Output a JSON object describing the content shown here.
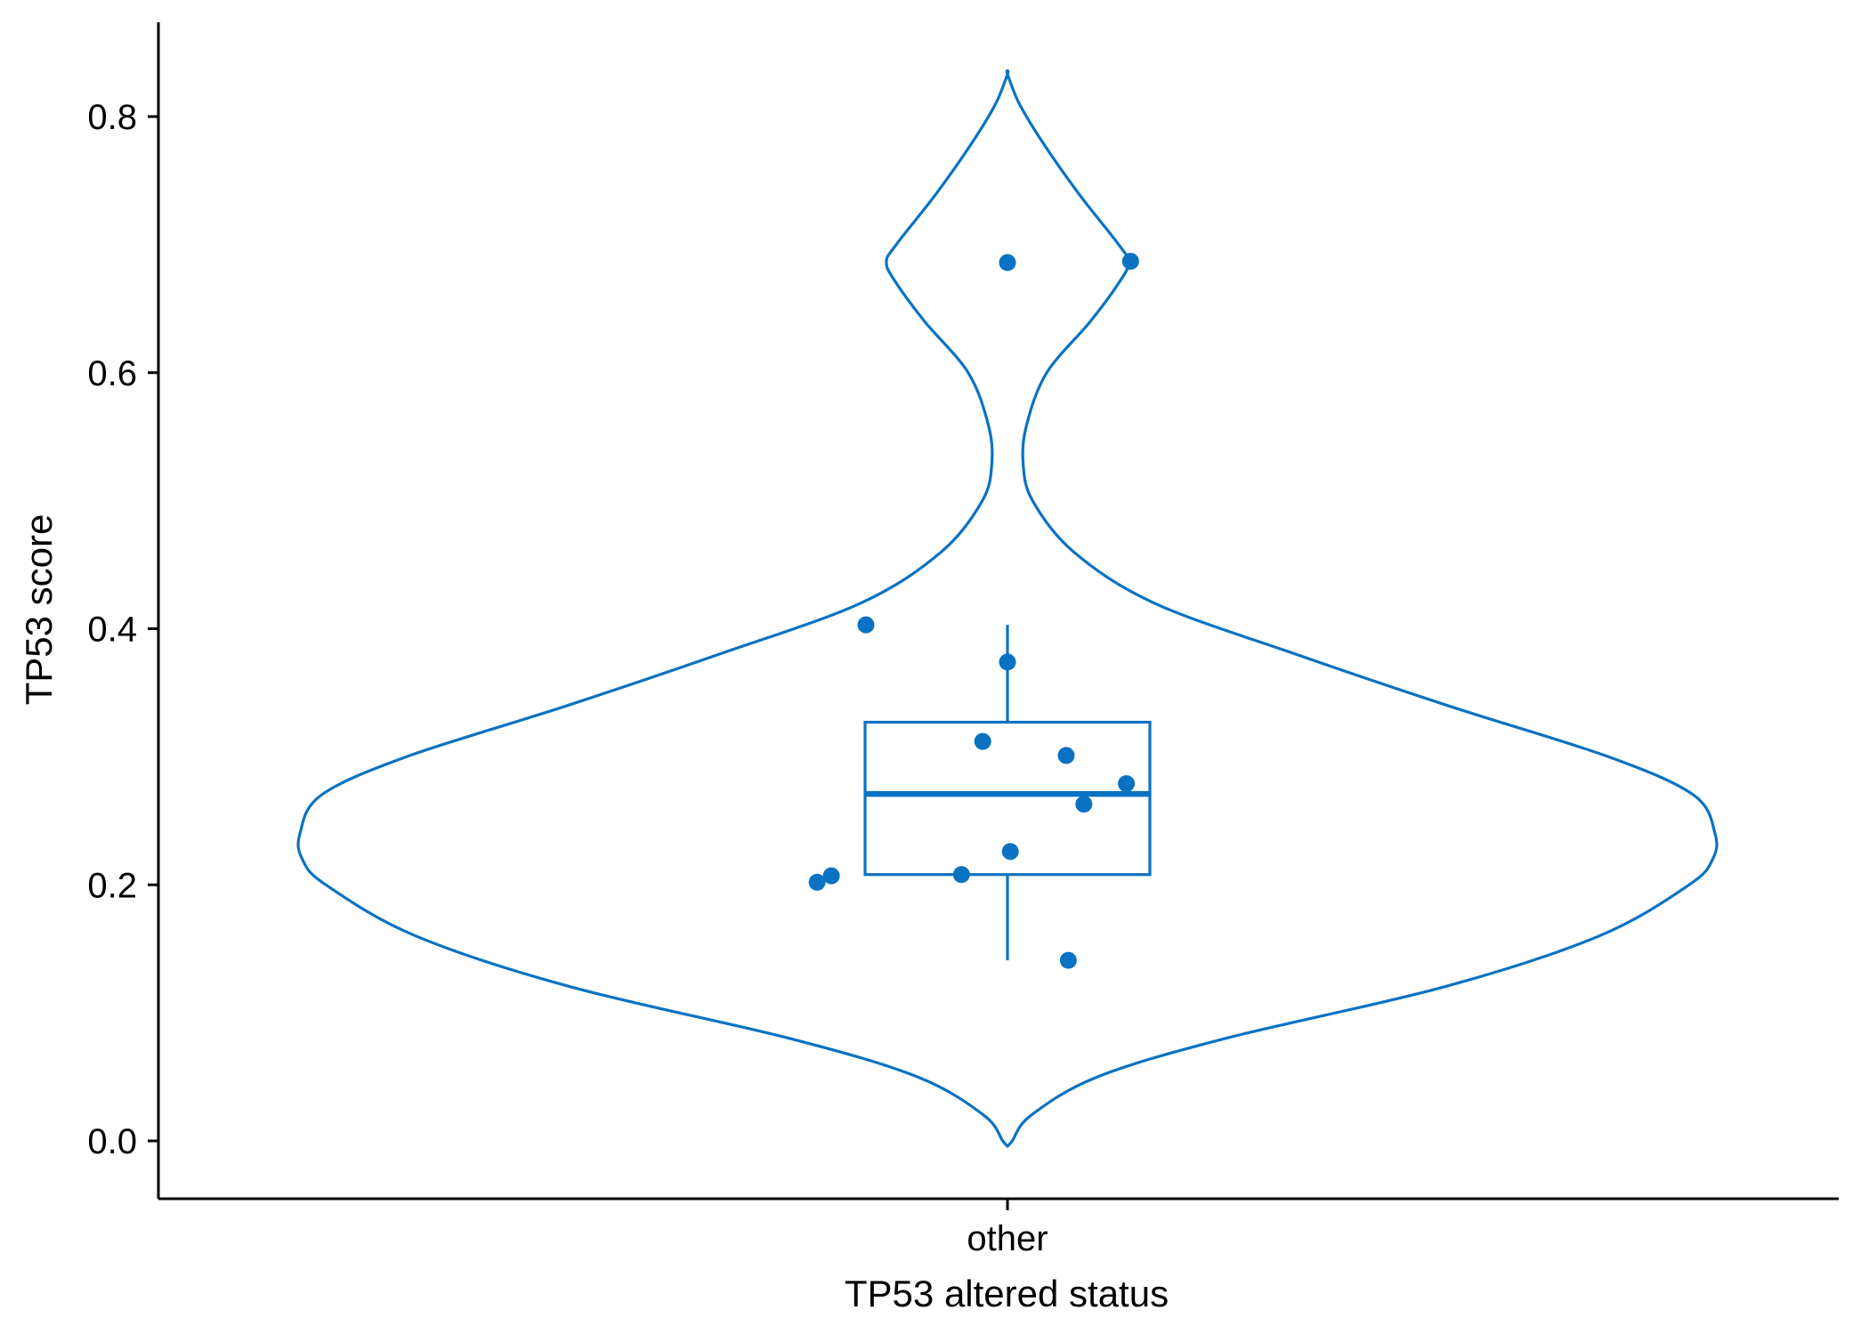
{
  "chart_data": {
    "type": "violin",
    "title": "",
    "xlabel": "TP53 altered status",
    "ylabel": "TP53 score",
    "categories": [
      "other"
    ],
    "ylim": [
      -0.075,
      0.875
    ],
    "yticks": [
      0.0,
      0.2,
      0.4,
      0.6,
      0.8
    ],
    "ytick_labels": [
      "0.0",
      "0.2",
      "0.4",
      "0.6",
      "0.8"
    ],
    "grid": false,
    "legend": "none",
    "color": "#0A72C2",
    "points": [
      {
        "x_jitter": 0.0,
        "y": 0.686
      },
      {
        "x_jitter": 0.174,
        "y": 0.687
      },
      {
        "x_jitter": -0.2,
        "y": 0.403
      },
      {
        "x_jitter": 0.0,
        "y": 0.374
      },
      {
        "x_jitter": -0.035,
        "y": 0.312
      },
      {
        "x_jitter": 0.083,
        "y": 0.301
      },
      {
        "x_jitter": 0.168,
        "y": 0.279
      },
      {
        "x_jitter": 0.108,
        "y": 0.263
      },
      {
        "x_jitter": 0.004,
        "y": 0.226
      },
      {
        "x_jitter": -0.065,
        "y": 0.208
      },
      {
        "x_jitter": -0.249,
        "y": 0.207
      },
      {
        "x_jitter": -0.269,
        "y": 0.202
      },
      {
        "x_jitter": 0.086,
        "y": 0.141
      }
    ],
    "box": {
      "min": 0.141,
      "q1": 0.208,
      "median": 0.271,
      "q3": 0.327,
      "max": 0.403
    },
    "violin": {
      "y": [
        -0.004,
        0.0,
        0.02,
        0.05,
        0.08,
        0.12,
        0.16,
        0.2,
        0.22,
        0.24,
        0.27,
        0.3,
        0.34,
        0.38,
        0.42,
        0.46,
        0.5,
        0.53,
        0.56,
        0.6,
        0.64,
        0.67,
        0.686,
        0.7,
        0.74,
        0.78,
        0.81,
        0.833
      ],
      "width": [
        0.0,
        0.01,
        0.05,
        0.19,
        0.46,
        0.92,
        1.25,
        1.44,
        1.49,
        1.495,
        1.45,
        1.27,
        0.93,
        0.61,
        0.31,
        0.14,
        0.053,
        0.033,
        0.041,
        0.083,
        0.175,
        0.235,
        0.256,
        0.235,
        0.15,
        0.074,
        0.025,
        0.0
      ]
    }
  }
}
